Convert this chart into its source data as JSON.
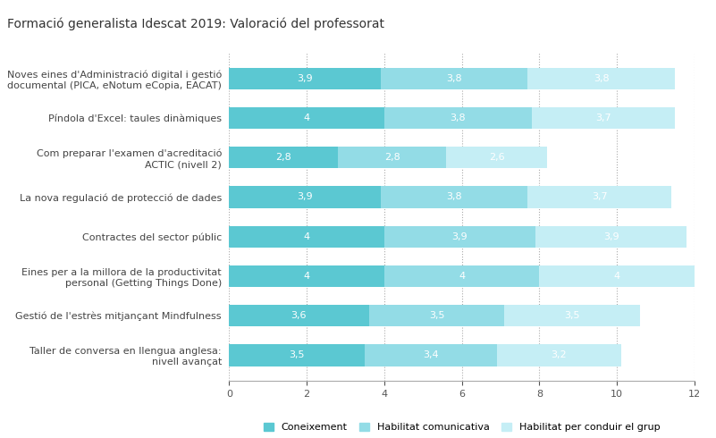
{
  "title": "Formació generalista Idescat 2019: Valoració del professorat",
  "categories": [
    "Noves eines d'Administració digital i gestió\ndocumental (PICA, eNotum eCopia, EACAT)",
    "Píndola d'Excel: taules dinàmiques",
    "Com preparar l'examen d'acreditació\nACTIC (nivell 2)",
    "La nova regulació de protecció de dades",
    "Contractes del sector públic",
    "Eines per a la millora de la productivitat\npersonal (Getting Things Done)",
    "Gestió de l'estrès mitjançant Mindfulness",
    "Taller de conversa en llengua anglesa:\nnivell avançat"
  ],
  "coneixement": [
    3.9,
    4.0,
    2.8,
    3.9,
    4.0,
    4.0,
    3.6,
    3.5
  ],
  "habilitat_com": [
    3.8,
    3.8,
    2.8,
    3.8,
    3.9,
    4.0,
    3.5,
    3.4
  ],
  "habilitat_conduir": [
    3.8,
    3.7,
    2.6,
    3.7,
    3.9,
    4.0,
    3.5,
    3.2
  ],
  "color_coneixement": "#5bc8d2",
  "color_habilitat_com": "#93dce6",
  "color_habilitat_cond": "#c5eef5",
  "xlim": [
    0,
    12
  ],
  "xticks": [
    0,
    2,
    4,
    6,
    8,
    10,
    12
  ],
  "legend_labels": [
    "Coneixement",
    "Habilitat comunicativa",
    "Habilitat per conduir el grup"
  ],
  "title_fontsize": 10,
  "label_fontsize": 8,
  "tick_fontsize": 8,
  "value_fontsize": 8,
  "bar_height": 0.55
}
